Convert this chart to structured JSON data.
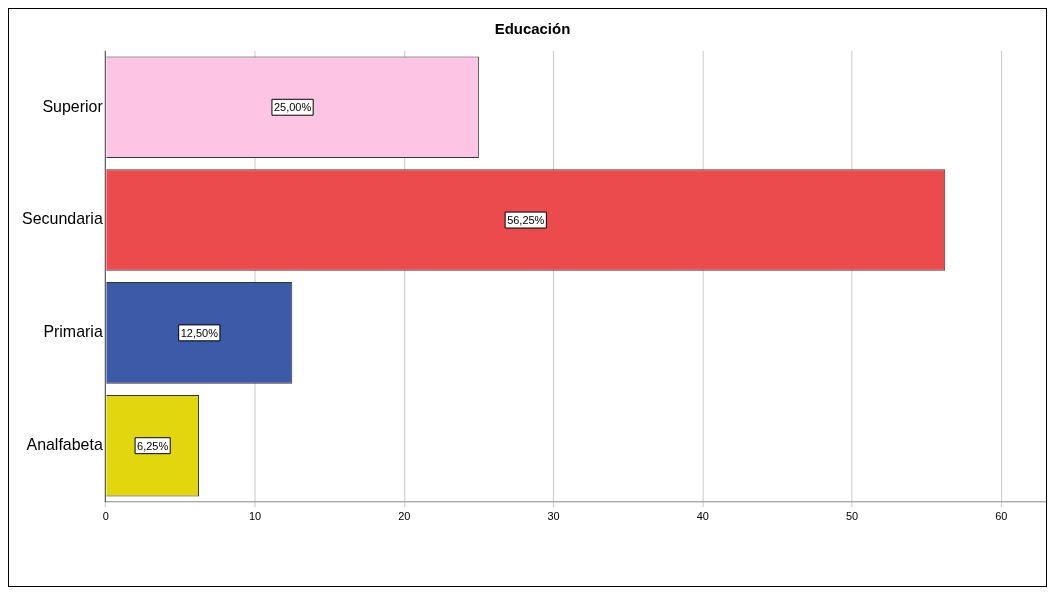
{
  "chart_data": {
    "type": "bar",
    "orientation": "horizontal",
    "title": "Educación",
    "categories": [
      "Superior",
      "Secundaria",
      "Primaria",
      "Analfabeta"
    ],
    "values": [
      25,
      56.25,
      12.5,
      6.25
    ],
    "colors": [
      "#fdc5e3",
      "#ec4b4e",
      "#3d5aa8",
      "#e2d70e"
    ],
    "value_labels": [
      "25,00%",
      "56,25%",
      "12,50%",
      "6,25%"
    ],
    "xlim": [
      0,
      63
    ],
    "xticks": [
      0,
      10,
      20,
      30,
      40,
      50,
      60
    ],
    "grid": "x",
    "legend": false
  }
}
